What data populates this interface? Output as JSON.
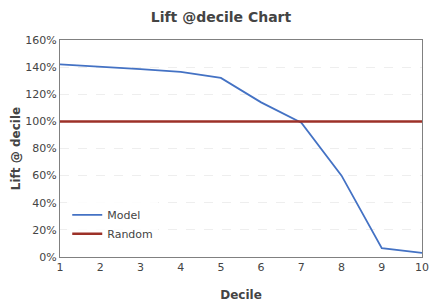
{
  "chart_data": {
    "type": "line",
    "title": "Lift @decile Chart",
    "x_label": "Decile",
    "y_label": "Lift @ decile",
    "x": [
      1,
      2,
      3,
      4,
      5,
      6,
      7,
      8,
      9,
      10
    ],
    "series": [
      {
        "name": "Model",
        "color": "#4472C4",
        "values": [
          1.42,
          1.405,
          1.385,
          1.365,
          1.32,
          1.14,
          0.99,
          0.6,
          0.065,
          0.03
        ]
      },
      {
        "name": "Random",
        "color": "#9C3128",
        "values": [
          1.0,
          1.0,
          1.0,
          1.0,
          1.0,
          1.0,
          1.0,
          1.0,
          1.0,
          1.0
        ]
      }
    ],
    "xlim": [
      1,
      10
    ],
    "xticks": [
      1,
      2,
      3,
      4,
      5,
      6,
      7,
      8,
      9,
      10
    ],
    "ylim": [
      0,
      1.6
    ],
    "yticks": [
      {
        "value": 0.0,
        "label": "0%"
      },
      {
        "value": 0.2,
        "label": "20%"
      },
      {
        "value": 0.4,
        "label": "40%"
      },
      {
        "value": 0.6,
        "label": "60%"
      },
      {
        "value": 0.8,
        "label": "80%"
      },
      {
        "value": 1.0,
        "label": "100%"
      },
      {
        "value": 1.2,
        "label": "120%"
      },
      {
        "value": 1.4,
        "label": "140%"
      },
      {
        "value": 1.6,
        "label": "160%"
      }
    ],
    "grid": "y",
    "legend": "lower left"
  }
}
